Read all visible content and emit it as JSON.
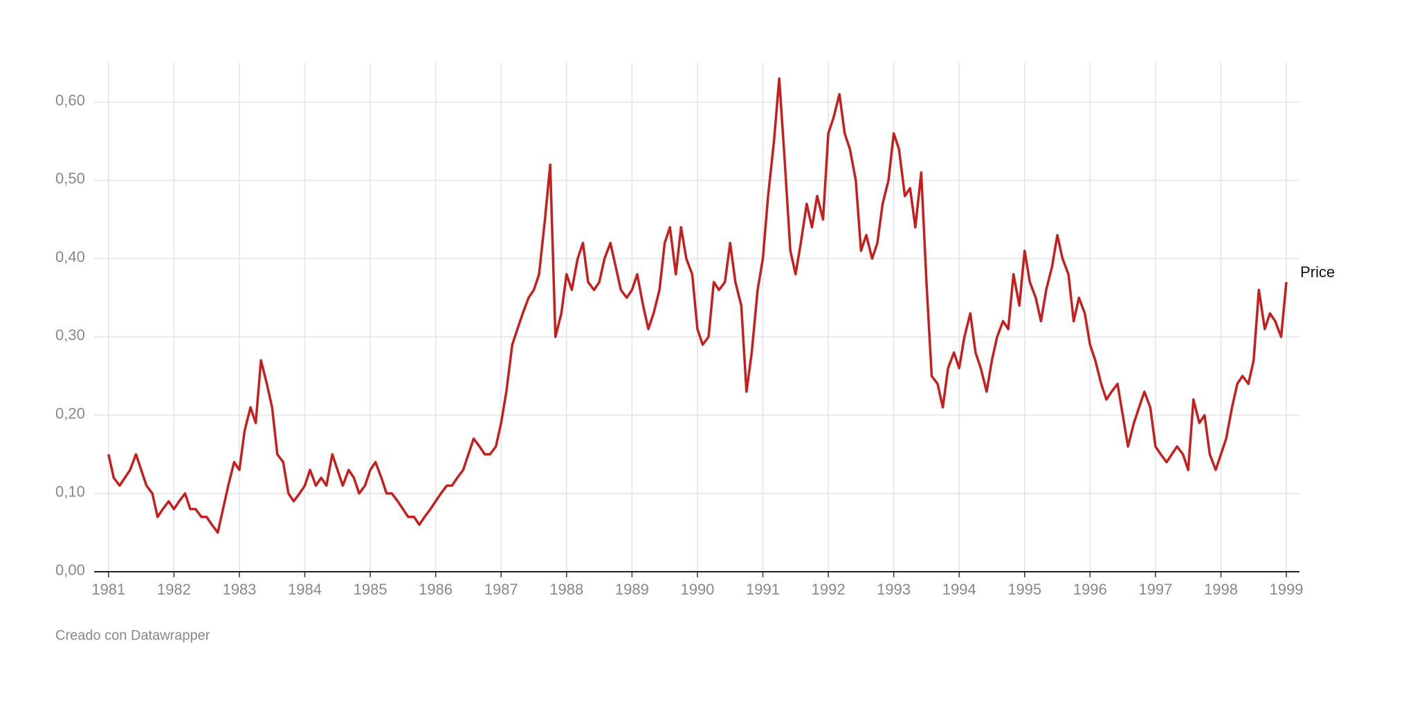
{
  "chart_data": {
    "type": "line",
    "footer": "Creado con Datawrapper",
    "x": [
      1981,
      1981.08,
      1981.17,
      1981.25,
      1981.33,
      1981.42,
      1981.5,
      1981.58,
      1981.67,
      1981.75,
      1981.83,
      1981.92,
      1982,
      1982.08,
      1982.17,
      1982.25,
      1982.33,
      1982.42,
      1982.5,
      1982.58,
      1982.67,
      1982.75,
      1982.83,
      1982.92,
      1983,
      1983.08,
      1983.17,
      1983.25,
      1983.33,
      1983.42,
      1983.5,
      1983.58,
      1983.67,
      1983.75,
      1983.83,
      1983.92,
      1984,
      1984.08,
      1984.17,
      1984.25,
      1984.33,
      1984.42,
      1984.5,
      1984.58,
      1984.67,
      1984.75,
      1984.83,
      1984.92,
      1985,
      1985.08,
      1985.17,
      1985.25,
      1985.33,
      1985.42,
      1985.5,
      1985.58,
      1985.67,
      1985.75,
      1985.83,
      1985.92,
      1986,
      1986.08,
      1986.17,
      1986.25,
      1986.33,
      1986.42,
      1986.5,
      1986.58,
      1986.67,
      1986.75,
      1986.83,
      1986.92,
      1987,
      1987.08,
      1987.17,
      1987.25,
      1987.33,
      1987.42,
      1987.5,
      1987.58,
      1987.67,
      1987.75,
      1987.83,
      1987.92,
      1988,
      1988.08,
      1988.17,
      1988.25,
      1988.33,
      1988.42,
      1988.5,
      1988.58,
      1988.67,
      1988.75,
      1988.83,
      1988.92,
      1989,
      1989.08,
      1989.17,
      1989.25,
      1989.33,
      1989.42,
      1989.5,
      1989.58,
      1989.67,
      1989.75,
      1989.83,
      1989.92,
      1990,
      1990.08,
      1990.17,
      1990.25,
      1990.33,
      1990.42,
      1990.5,
      1990.58,
      1990.67,
      1990.75,
      1990.83,
      1990.92,
      1991,
      1991.08,
      1991.17,
      1991.25,
      1991.33,
      1991.42,
      1991.5,
      1991.58,
      1991.67,
      1991.75,
      1991.83,
      1991.92,
      1992,
      1992.08,
      1992.17,
      1992.25,
      1992.33,
      1992.42,
      1992.5,
      1992.58,
      1992.67,
      1992.75,
      1992.83,
      1992.92,
      1993,
      1993.08,
      1993.17,
      1993.25,
      1993.33,
      1993.42,
      1993.5,
      1993.58,
      1993.67,
      1993.75,
      1993.83,
      1993.92,
      1994,
      1994.08,
      1994.17,
      1994.25,
      1994.33,
      1994.42,
      1994.5,
      1994.58,
      1994.67,
      1994.75,
      1994.83,
      1994.92,
      1995,
      1995.08,
      1995.17,
      1995.25,
      1995.33,
      1995.42,
      1995.5,
      1995.58,
      1995.67,
      1995.75,
      1995.83,
      1995.92,
      1996,
      1996.08,
      1996.17,
      1996.25,
      1996.33,
      1996.42,
      1996.5,
      1996.58,
      1996.67,
      1996.75,
      1996.83,
      1996.92,
      1997,
      1997.08,
      1997.17,
      1997.25,
      1997.33,
      1997.42,
      1997.5,
      1997.58,
      1997.67,
      1997.75,
      1997.83,
      1997.92,
      1998,
      1998.08,
      1998.17,
      1998.25,
      1998.33,
      1998.42,
      1998.5,
      1998.58,
      1998.67,
      1998.75,
      1998.83,
      1998.92,
      1999
    ],
    "series": [
      {
        "name": "Price",
        "color": "#c71e1d",
        "values": [
          0.15,
          0.12,
          0.11,
          0.12,
          0.13,
          0.15,
          0.13,
          0.11,
          0.1,
          0.07,
          0.08,
          0.09,
          0.08,
          0.09,
          0.1,
          0.08,
          0.08,
          0.07,
          0.07,
          0.06,
          0.05,
          0.08,
          0.11,
          0.14,
          0.13,
          0.18,
          0.21,
          0.19,
          0.27,
          0.24,
          0.21,
          0.15,
          0.14,
          0.1,
          0.09,
          0.1,
          0.11,
          0.13,
          0.11,
          0.12,
          0.11,
          0.15,
          0.13,
          0.11,
          0.13,
          0.12,
          0.1,
          0.11,
          0.13,
          0.14,
          0.12,
          0.1,
          0.1,
          0.09,
          0.08,
          0.07,
          0.07,
          0.06,
          0.07,
          0.08,
          0.09,
          0.1,
          0.11,
          0.11,
          0.12,
          0.13,
          0.15,
          0.17,
          0.16,
          0.15,
          0.15,
          0.16,
          0.19,
          0.23,
          0.29,
          0.31,
          0.33,
          0.35,
          0.36,
          0.38,
          0.45,
          0.52,
          0.3,
          0.33,
          0.38,
          0.36,
          0.4,
          0.42,
          0.37,
          0.36,
          0.37,
          0.4,
          0.42,
          0.39,
          0.36,
          0.35,
          0.36,
          0.38,
          0.34,
          0.31,
          0.33,
          0.36,
          0.42,
          0.44,
          0.38,
          0.44,
          0.4,
          0.38,
          0.31,
          0.29,
          0.3,
          0.37,
          0.36,
          0.37,
          0.42,
          0.37,
          0.34,
          0.23,
          0.28,
          0.36,
          0.4,
          0.48,
          0.55,
          0.63,
          0.53,
          0.41,
          0.38,
          0.42,
          0.47,
          0.44,
          0.48,
          0.45,
          0.56,
          0.58,
          0.61,
          0.56,
          0.54,
          0.5,
          0.41,
          0.43,
          0.4,
          0.42,
          0.47,
          0.5,
          0.56,
          0.54,
          0.48,
          0.49,
          0.44,
          0.51,
          0.37,
          0.25,
          0.24,
          0.21,
          0.26,
          0.28,
          0.26,
          0.3,
          0.33,
          0.28,
          0.26,
          0.23,
          0.27,
          0.3,
          0.32,
          0.31,
          0.38,
          0.34,
          0.41,
          0.37,
          0.35,
          0.32,
          0.36,
          0.39,
          0.43,
          0.4,
          0.38,
          0.32,
          0.35,
          0.33,
          0.29,
          0.27,
          0.24,
          0.22,
          0.23,
          0.24,
          0.2,
          0.16,
          0.19,
          0.21,
          0.23,
          0.21,
          0.16,
          0.15,
          0.14,
          0.15,
          0.16,
          0.15,
          0.13,
          0.22,
          0.19,
          0.2,
          0.15,
          0.13,
          0.15,
          0.17,
          0.21,
          0.24,
          0.25,
          0.24,
          0.27,
          0.36,
          0.31,
          0.33,
          0.32,
          0.3,
          0.37
        ]
      }
    ],
    "xlim": [
      1980.78,
      1999.2
    ],
    "xticks": [
      1981,
      1982,
      1983,
      1984,
      1985,
      1986,
      1987,
      1988,
      1989,
      1990,
      1991,
      1992,
      1993,
      1994,
      1995,
      1996,
      1997,
      1998,
      1999
    ],
    "ylim": [
      0,
      0.65
    ],
    "yticks": [
      {
        "value": 0,
        "label": "0,00"
      },
      {
        "value": 0.1,
        "label": "0,10"
      },
      {
        "value": 0.2,
        "label": "0,20"
      },
      {
        "value": 0.3,
        "label": "0,30"
      },
      {
        "value": 0.4,
        "label": "0,40"
      },
      {
        "value": 0.5,
        "label": "0,50"
      },
      {
        "value": 0.6,
        "label": "0,60"
      }
    ],
    "grid": true
  }
}
